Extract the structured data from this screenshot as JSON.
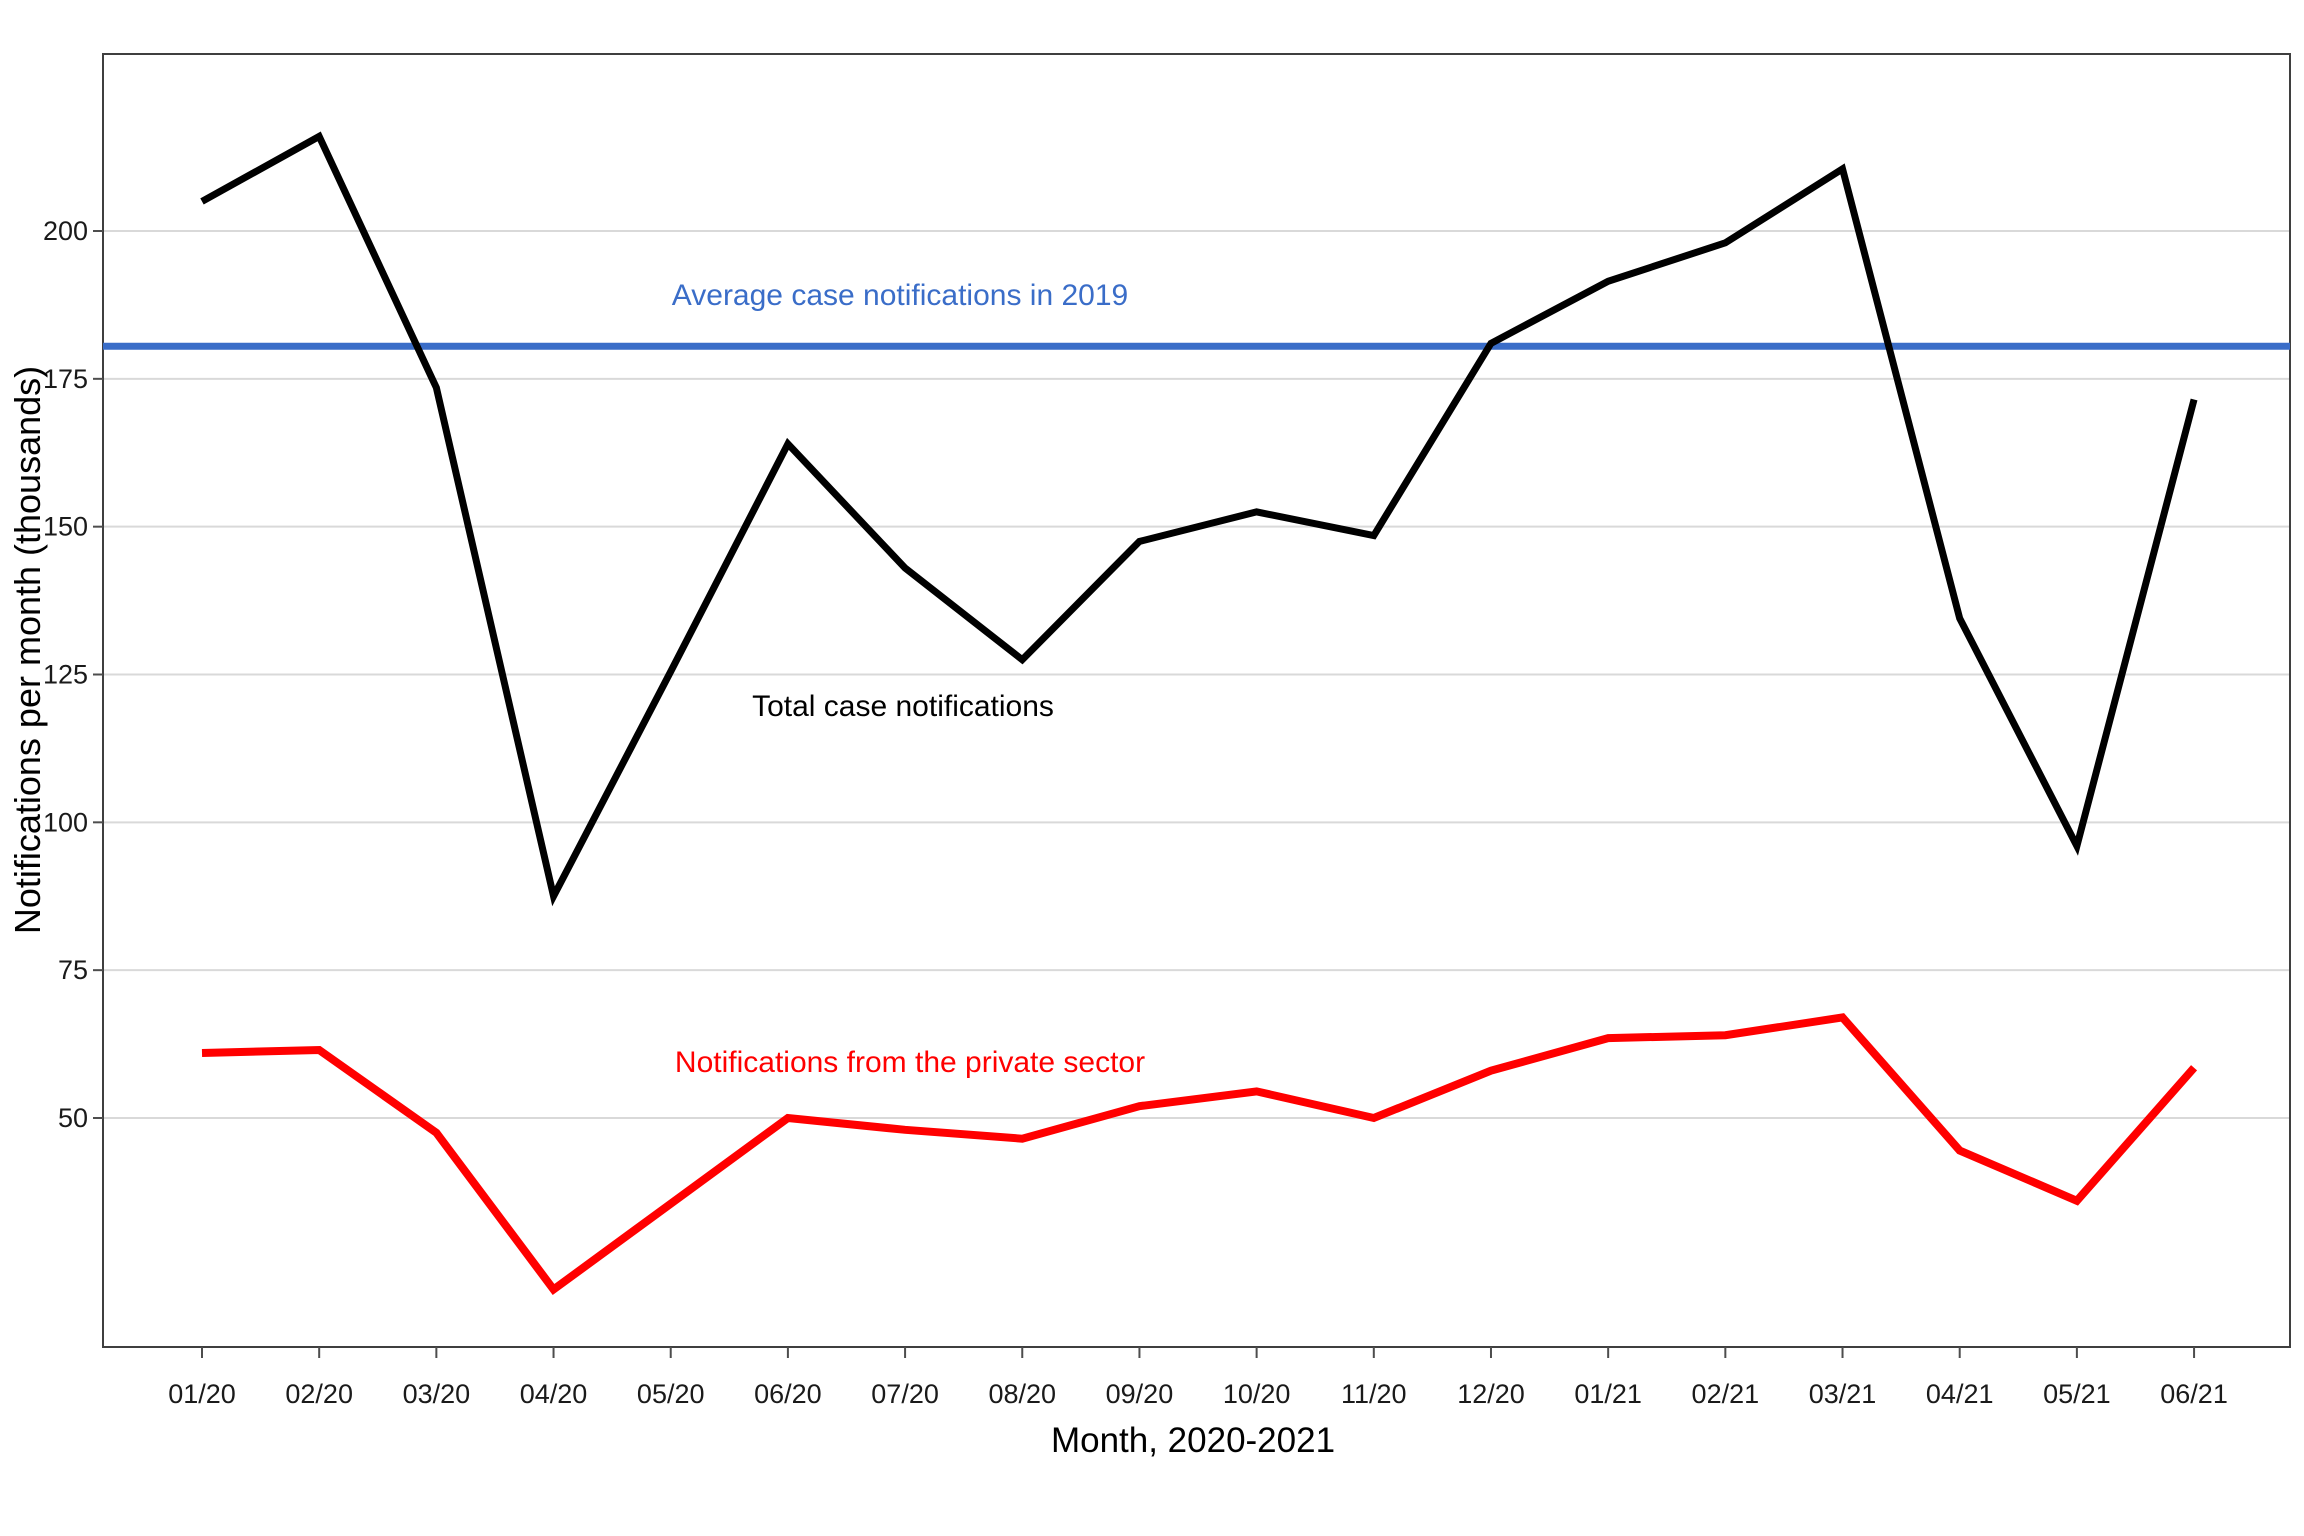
{
  "chart_data": {
    "type": "line",
    "title": "",
    "xlabel": "Month, 2020-2021",
    "ylabel": "Notifications per month (thousands)",
    "x_categories": [
      "01/20",
      "02/20",
      "03/20",
      "04/20",
      "05/20",
      "06/20",
      "07/20",
      "08/20",
      "09/20",
      "10/20",
      "11/20",
      "12/20",
      "01/21",
      "02/21",
      "03/21",
      "04/21",
      "05/21",
      "06/21"
    ],
    "yticks": [
      50,
      75,
      100,
      125,
      150,
      175,
      200
    ],
    "ylim": [
      11,
      230
    ],
    "grid": true,
    "legend": "inline-labels",
    "series": [
      {
        "name": "Total case notifications",
        "color": "#000000",
        "values": [
          205,
          216,
          173.5,
          87.5,
          125.5,
          164,
          143,
          127.5,
          147.5,
          152.5,
          148.5,
          181,
          191.5,
          198,
          210.5,
          134.5,
          96,
          171.5
        ]
      },
      {
        "name": "Notifications from the private sector",
        "color": "#ff0000",
        "values": [
          61,
          61.5,
          47.5,
          21,
          35.5,
          50,
          48,
          46.5,
          52,
          54.5,
          50,
          58,
          63.5,
          64,
          67,
          44.5,
          36,
          58.5
        ]
      }
    ],
    "reference_line": {
      "label": "Average case notifications in 2019",
      "value": 180.5,
      "color": "#3a6dc8"
    },
    "colors": {
      "gridline": "#d9d9d9",
      "plot_border": "#3f3f3f",
      "tick": "#4d4d4d",
      "tick_label": "#1a1a1a"
    }
  }
}
